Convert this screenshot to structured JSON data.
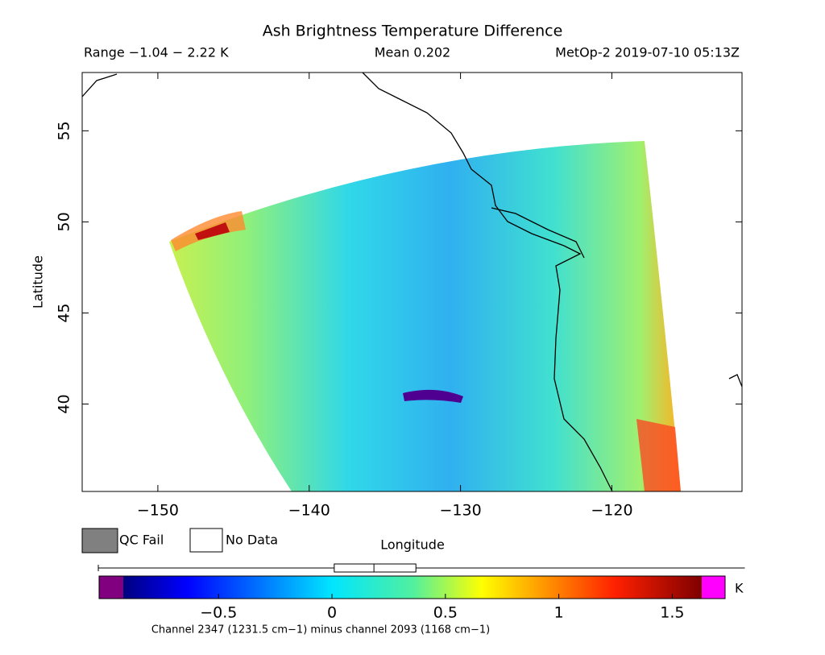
{
  "title": "Ash Brightness Temperature Difference",
  "info": {
    "range": "Range −1.04 − 2.22 K",
    "mean": "Mean 0.202",
    "source": "MetOp-2 2019-07-10 05:13Z"
  },
  "map": {
    "xlabel": "Longitude",
    "ylabel": "Latitude",
    "xlim": [
      -155,
      -111.4
    ],
    "ylim": [
      35.2,
      58.2
    ],
    "xticks": [
      {
        "value": -150,
        "label": "−150"
      },
      {
        "value": -140,
        "label": "−140"
      },
      {
        "value": -130,
        "label": "−130"
      },
      {
        "value": -120,
        "label": "−120"
      }
    ],
    "yticks": [
      40,
      45,
      50,
      55
    ]
  },
  "legend": [
    {
      "name": "QC Fail",
      "color": "#808080"
    },
    {
      "name": "No Data",
      "color": "#ffffff"
    }
  ],
  "colorbar": {
    "unit": "K",
    "lim": [
      -0.92,
      1.63
    ],
    "ticks": [
      {
        "value": -0.5,
        "label": "−0.5"
      },
      0,
      0.5,
      1,
      1.5
    ],
    "under_color": "#800080",
    "over_color": "#ff00ff",
    "boxplot": {
      "whisker_low": -1.03,
      "q1": 0.01,
      "median": 0.185,
      "q3": 0.37,
      "whisker_high": 1.82
    },
    "caption": "Channel 2347 (1231.5 cm−1) minus channel 2093 (1168 cm−1)"
  }
}
